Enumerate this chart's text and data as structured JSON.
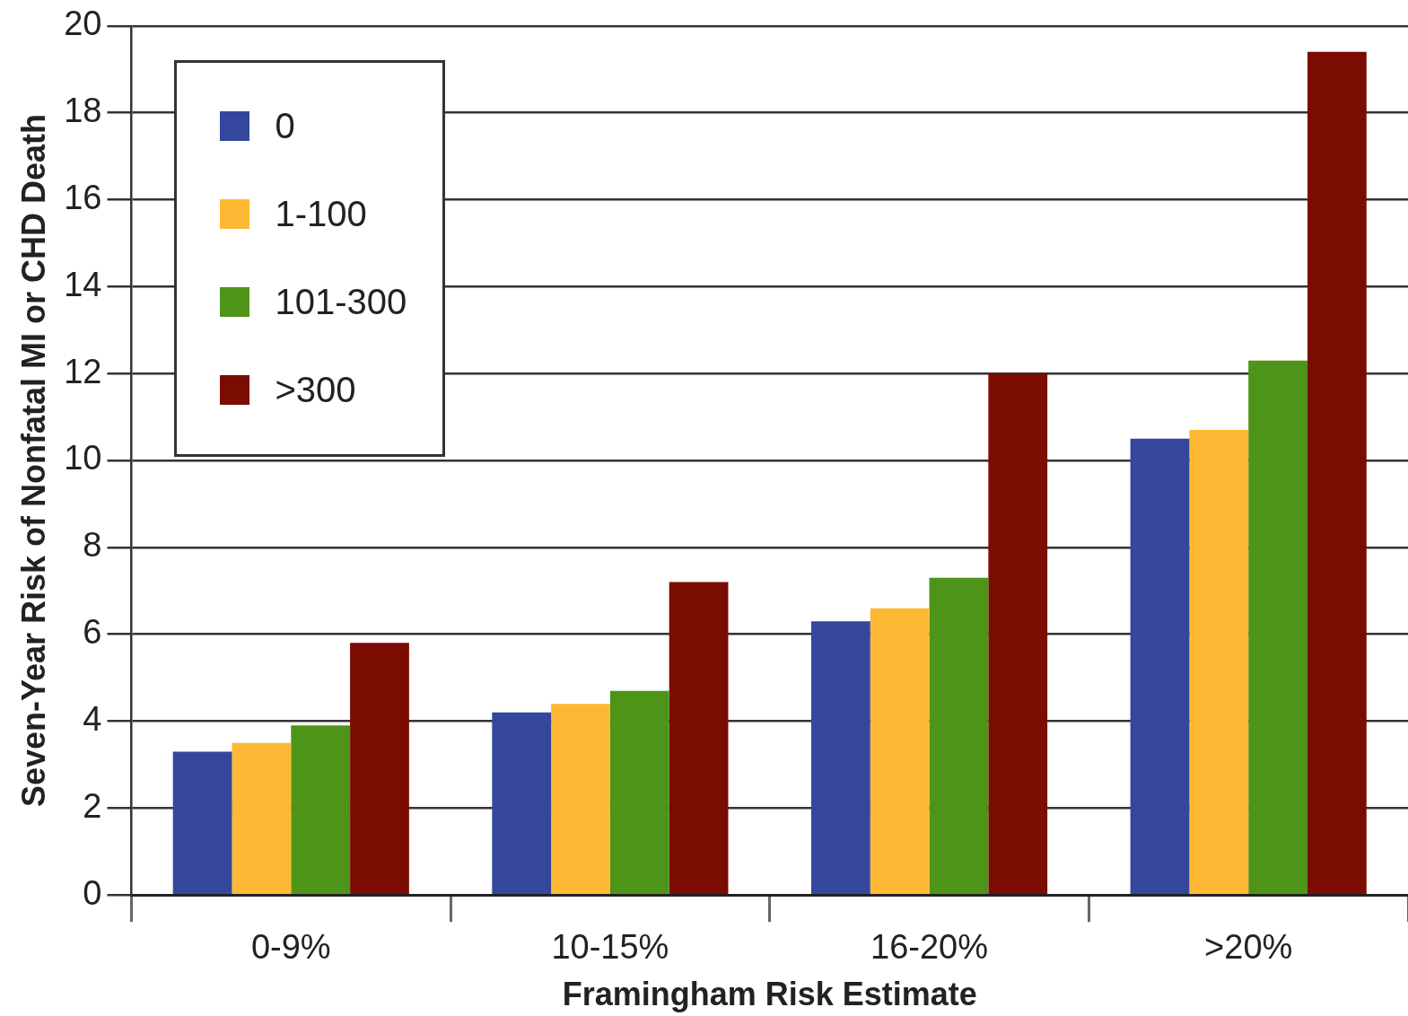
{
  "chart_data": {
    "type": "bar",
    "xlabel": "Framingham Risk Estimate",
    "ylabel": "Seven-Year Risk of Nonfatal MI or CHD Death",
    "categories": [
      "0-9%",
      "10-15%",
      "16-20%",
      ">20%"
    ],
    "series": [
      {
        "name": "0",
        "color": "#34479d",
        "values": [
          3.3,
          4.2,
          6.3,
          10.5
        ]
      },
      {
        "name": "1-100",
        "color": "#fdb933",
        "values": [
          3.5,
          4.4,
          6.6,
          10.7
        ]
      },
      {
        "name": "101-300",
        "color": "#4e9419",
        "values": [
          3.9,
          4.7,
          7.3,
          12.3
        ]
      },
      {
        "name": ">300",
        "color": "#7b0c02",
        "values": [
          5.8,
          7.2,
          12.0,
          19.4
        ]
      }
    ],
    "ylim": [
      0,
      20
    ],
    "yticks": [
      0,
      2,
      4,
      6,
      8,
      10,
      12,
      14,
      16,
      18,
      20
    ],
    "grid": "y",
    "legend": "top left"
  }
}
